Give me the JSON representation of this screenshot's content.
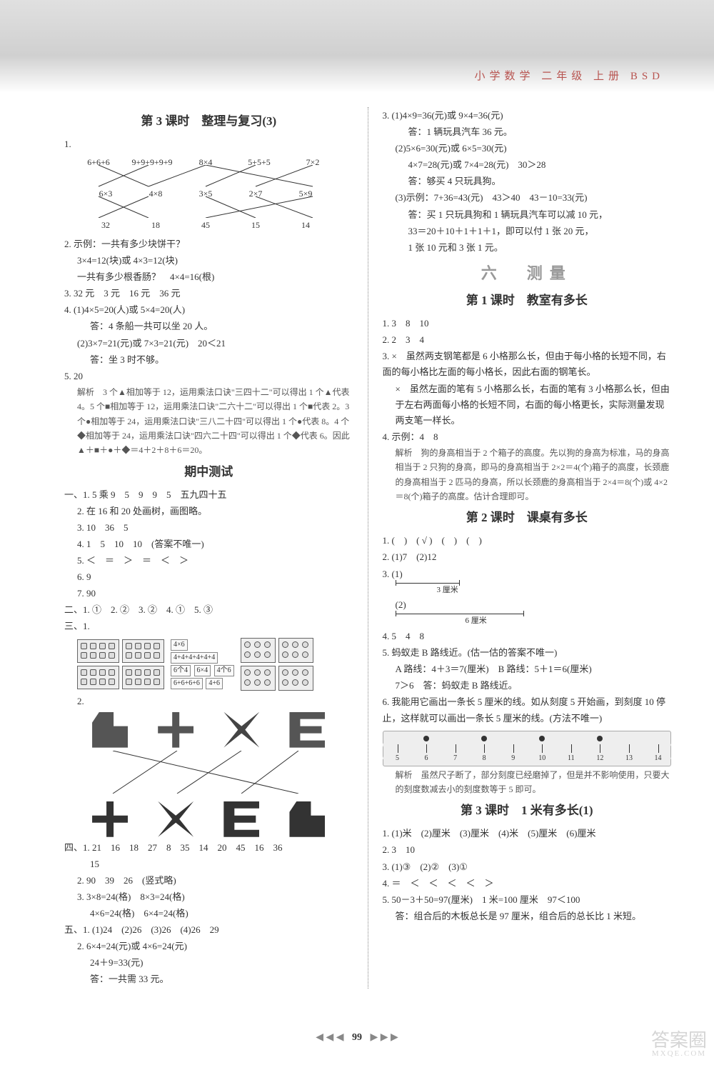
{
  "header": {
    "subject": "小学数学",
    "grade": "二年级",
    "volume": "上册",
    "edition": "BSD"
  },
  "left": {
    "lesson3": {
      "title": "第 3 课时　整理与复习(3)",
      "q1": {
        "top": [
          "6+6+6",
          "9+9+9+9+9",
          "8×4",
          "5+5+5",
          "7×2"
        ],
        "mid": [
          "6×3",
          "4×8",
          "3×5",
          "2×7",
          "5×9"
        ],
        "bot": [
          "32",
          "18",
          "45",
          "15",
          "14"
        ]
      },
      "q2_l1": "2. 示例：一共有多少块饼干？",
      "q2_l2": "3×4=12(块)或 4×3=12(块)",
      "q2_l3": "一共有多少根香肠？　4×4=16(根)",
      "q3": "3. 32 元　3 元　16 元　36 元",
      "q4_l1": "4. (1)4×5=20(人)或 5×4=20(人)",
      "q4_l2": "答：4 条船一共可以坐 20 人。",
      "q4_l3": "(2)3×7=21(元)或 7×3=21(元)　20＜21",
      "q4_l4": "答：坐 3 时不够。",
      "q5": "5. 20",
      "q5_exp": "解析　3 个▲相加等于 12，运用乘法口诀\"三四十二\"可以得出 1 个▲代表 4。5 个■相加等于 12，运用乘法口诀\"二六十二\"可以得出 1 个■代表 2。3 个●相加等于 24，运用乘法口诀\"三八二十四\"可以得出 1 个●代表 8。4 个◆相加等于 24，运用乘法口诀\"四六二十四\"可以得出 1 个◆代表 6。因此▲＋■＋●＋◆＝4＋2＋8＋6＝20。"
    },
    "midterm": {
      "title": "期中测试",
      "s1_1": "一、1. 5 乘 9　5　9　9　5　五九四十五",
      "s1_2": "2. 在 16 和 20 处画树，画图略。",
      "s1_3": "3. 10　36　5",
      "s1_4": "4. 1　5　10　10　(答案不唯一)",
      "s1_5": "5. ＜　＝　＞　＝　＜　＞",
      "s1_6": "6. 9",
      "s1_7": "7. 90",
      "s2": "二、1. ①　2. ②　3. ②　4. ①　5. ③",
      "s3": "三、1.",
      "s3_exprs": [
        "4×6",
        "4+4+4+4+4+4",
        "6个4",
        "6×4",
        "4个6",
        "6+6+6+6",
        "4+6"
      ],
      "s3_2": "2.",
      "s4_1": "四、1. 21　16　18　27　8　35　14　20　45　16　36",
      "s4_1b": "15",
      "s4_2": "2. 90　39　26　(竖式略)",
      "s4_3a": "3. 3×8=24(格)　8×3=24(格)",
      "s4_3b": "4×6=24(格)　6×4=24(格)",
      "s5_1": "五、1. (1)24　(2)26　(3)26　(4)26　29",
      "s5_2a": "2. 6×4=24(元)或 4×6=24(元)",
      "s5_2b": "24＋9=33(元)",
      "s5_2c": "答：一共需 33 元。"
    }
  },
  "right": {
    "cont": {
      "q3_1a": "3. (1)4×9=36(元)或 9×4=36(元)",
      "q3_1b": "答：1 辆玩具汽车 36 元。",
      "q3_2a": "(2)5×6=30(元)或 6×5=30(元)",
      "q3_2b": "4×7=28(元)或 7×4=28(元)　30＞28",
      "q3_2c": "答：够买 4 只玩具狗。",
      "q3_3a": "(3)示例：7+36=43(元)　43＞40　43－10=33(元)",
      "q3_3b": "答：买 1 只玩具狗和 1 辆玩具汽车可以减 10 元，",
      "q3_3c": "33＝20＋10＋1＋1＋1，即可以付 1 张 20 元，",
      "q3_3d": "1 张 10 元和 3 张 1 元。"
    },
    "unit6": {
      "unit": "六　测量",
      "l1_title": "第 1 课时　教室有多长",
      "l1_1": "1. 3　8　10",
      "l1_2": "2. 2　3　4",
      "l1_3a": "3. ×　虽然两支钢笔都是 6 小格那么长，但由于每小格的长短不同，右面的每小格比左面的每小格长，因此右面的钢笔长。",
      "l1_3b": "×　虽然左面的笔有 5 小格那么长，右面的笔有 3 小格那么长，但由于左右两面每小格的长短不同，右面的每小格更长，实际测量发现两支笔一样长。",
      "l1_4": "4. 示例：4　8",
      "l1_4exp": "解析　狗的身高相当于 2 个箱子的高度。先以狗的身高为标准，马的身高相当于 2 只狗的身高，即马的身高相当于 2×2＝4(个)箱子的高度，长颈鹿的身高相当于 2 匹马的身高，所以长颈鹿的身高相当于 2×4＝8(个)或 4×2＝8(个)箱子的高度。估计合理即可。",
      "l2_title": "第 2 课时　课桌有多长",
      "l2_1": "1. (　)　( √ )　(　)　(　)",
      "l2_2": "2. (1)7　(2)12",
      "l2_3": "3. (1)",
      "l2_3a_len": "3 厘米",
      "l2_3b": "(2)",
      "l2_3b_len": "6 厘米",
      "l2_4": "4. 5　4　8",
      "l2_5a": "5. 蚂蚁走 B 路线近。(估一估的答案不唯一)",
      "l2_5b": "A 路线：4＋3＝7(厘米)　B 路线：5＋1＝6(厘米)",
      "l2_5c": "7＞6　答：蚂蚁走 B 路线近。",
      "l2_6a": "6. 我能用它画出一条长 5 厘米的线。如从刻度 5 开始画，到刻度 10 停止，这样就可以画出一条长 5 厘米的线。(方法不唯一)",
      "ruler_nums": [
        "5",
        "6",
        "7",
        "8",
        "9",
        "10",
        "11",
        "12",
        "13",
        "14"
      ],
      "l2_6exp": "解析　虽然尺子断了，部分刻度已经磨掉了，但是并不影响使用，只要大的刻度数减去小的刻度数等于 5 即可。",
      "l3_title": "第 3 课时　1 米有多长(1)",
      "l3_1": "1. (1)米　(2)厘米　(3)厘米　(4)米　(5)厘米　(6)厘米",
      "l3_2": "2. 3　10",
      "l3_3": "3. (1)③　(2)②　(3)①",
      "l3_4": "4. ＝　＜　＜　＜　＜　＞",
      "l3_5a": "5. 50－3＋50=97(厘米)　1 米=100 厘米　97＜100",
      "l3_5b": "答：组合后的木板总长是 97 厘米，组合后的总长比 1 米短。"
    }
  },
  "pageNum": "99",
  "watermark": {
    "main": "答案圈",
    "sub": "MXQE.COM"
  }
}
